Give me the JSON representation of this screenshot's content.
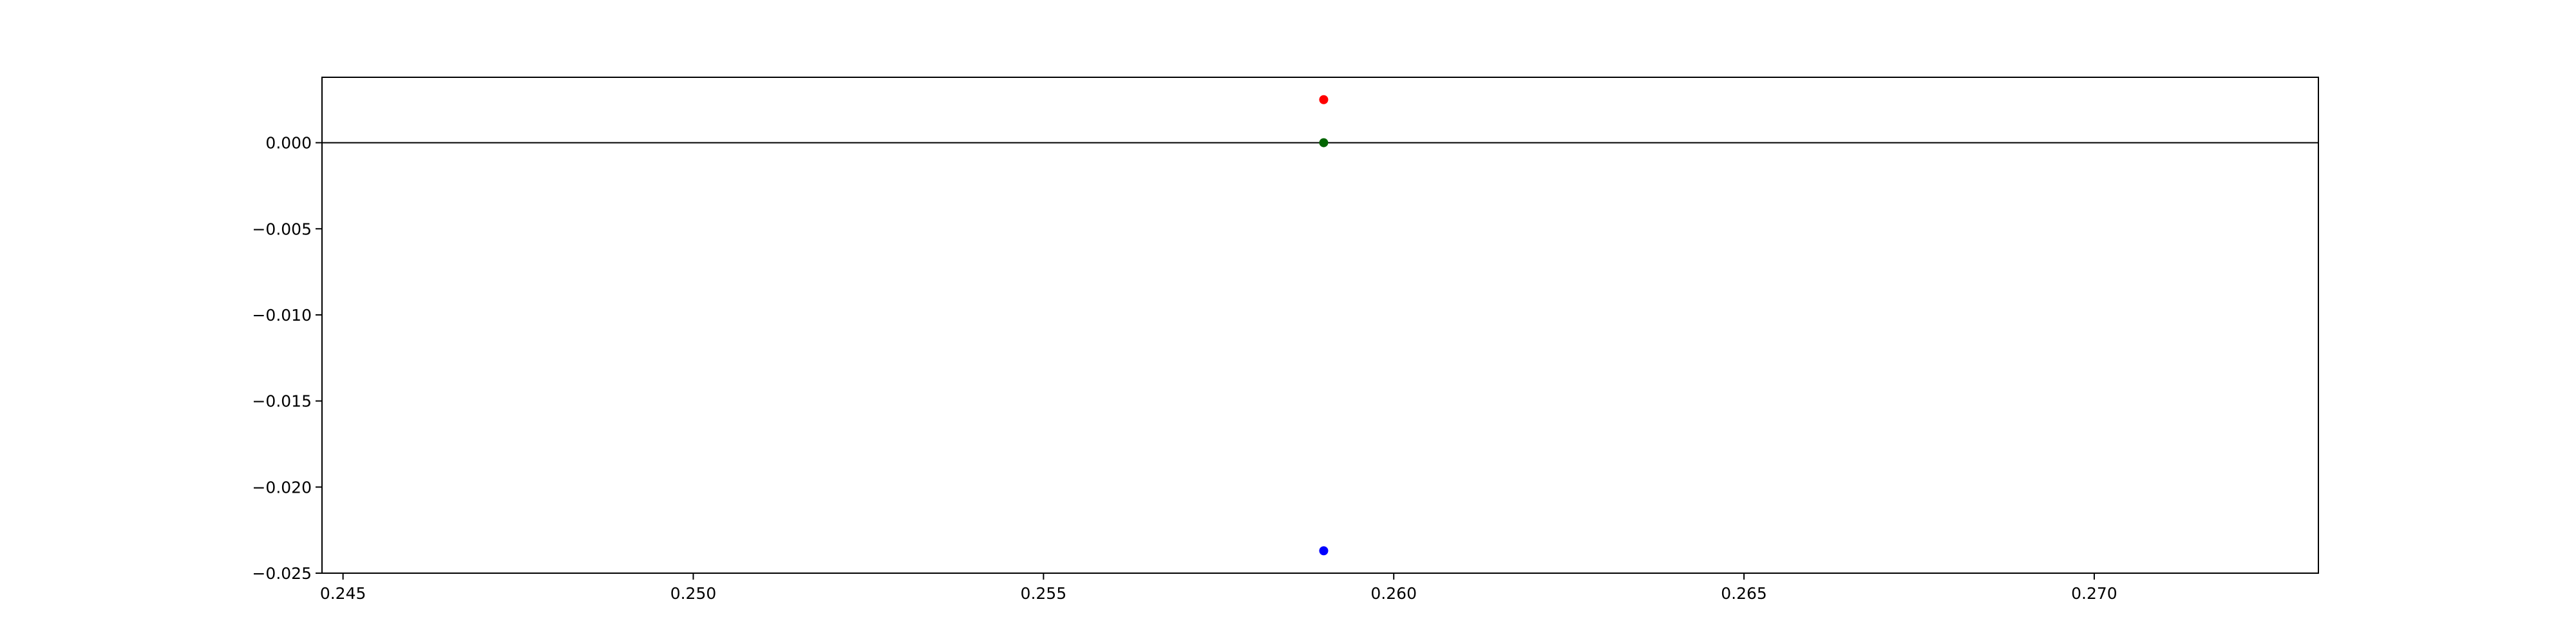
{
  "chart_data": {
    "type": "scatter",
    "title": "",
    "xlabel": "",
    "ylabel": "",
    "xlim": [
      0.2447,
      0.2732
    ],
    "ylim": [
      -0.025,
      0.0038
    ],
    "grid": false,
    "x_ticks": [
      {
        "value": 0.245,
        "label": "0.245"
      },
      {
        "value": 0.25,
        "label": "0.250"
      },
      {
        "value": 0.255,
        "label": "0.255"
      },
      {
        "value": 0.26,
        "label": "0.260"
      },
      {
        "value": 0.265,
        "label": "0.265"
      },
      {
        "value": 0.27,
        "label": "0.270"
      }
    ],
    "y_ticks": [
      {
        "value": 0.0,
        "label": "0.000"
      },
      {
        "value": -0.005,
        "label": "−0.005"
      },
      {
        "value": -0.01,
        "label": "−0.010"
      },
      {
        "value": -0.015,
        "label": "−0.015"
      },
      {
        "value": -0.02,
        "label": "−0.020"
      },
      {
        "value": -0.025,
        "label": "−0.025"
      }
    ],
    "reference_line": {
      "y": 0.0,
      "color": "#000000"
    },
    "series": [
      {
        "color": "#ff0000",
        "points": [
          {
            "x": 0.259,
            "y": 0.0025
          }
        ]
      },
      {
        "color": "#006400",
        "points": [
          {
            "x": 0.259,
            "y": 0.0
          }
        ]
      },
      {
        "color": "#0000ff",
        "points": [
          {
            "x": 0.259,
            "y": -0.0237
          }
        ]
      }
    ]
  }
}
